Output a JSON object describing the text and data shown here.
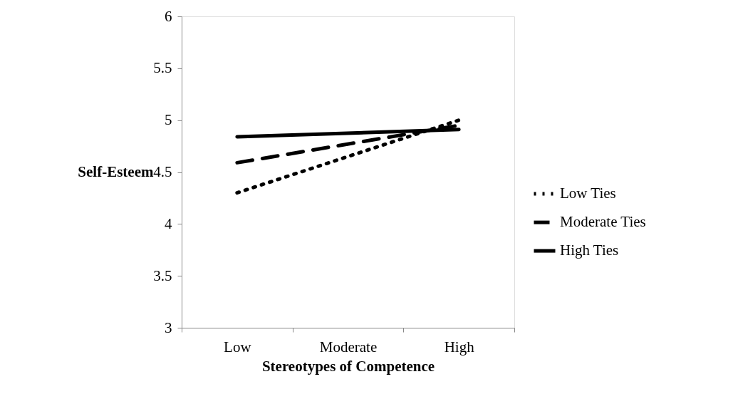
{
  "chart_data": {
    "type": "line",
    "xlabel": "Stereotypes of Competence",
    "ylabel": "Self-Esteem",
    "categories": [
      "Low",
      "Moderate",
      "High"
    ],
    "series": [
      {
        "name": "Low Ties",
        "color": "#000000",
        "line_style": "dotted",
        "values": [
          4.3,
          null,
          5.0
        ]
      },
      {
        "name": "Moderate Ties",
        "color": "#000000",
        "line_style": "dashed",
        "values": [
          4.59,
          null,
          4.95
        ]
      },
      {
        "name": "High Ties",
        "color": "#000000",
        "line_style": "solid",
        "values": [
          4.84,
          null,
          4.91
        ]
      }
    ],
    "ylim": [
      3,
      6
    ],
    "yticks": [
      3,
      3.5,
      4,
      4.5,
      5,
      5.5,
      6
    ],
    "grid": false,
    "legend": "right",
    "marker": "none"
  }
}
